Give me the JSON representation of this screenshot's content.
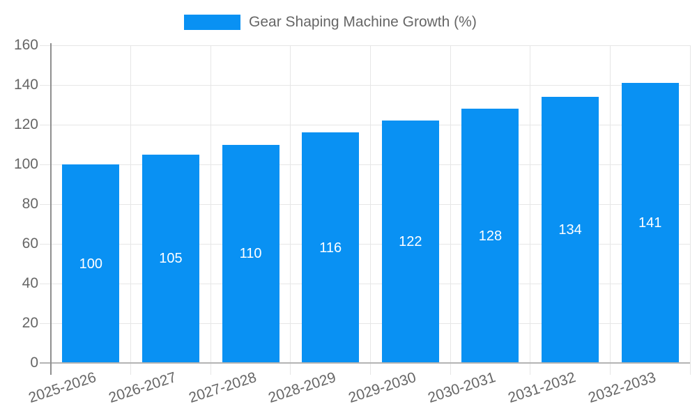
{
  "legend": {
    "label": "Gear Shaping Machine Growth (%)"
  },
  "colors": {
    "bar": "#0991f3",
    "bar_label": "#ffffff",
    "grid": "#e6e6e6",
    "y_axis_line": "#8f8f8f",
    "x_axis_line": "#b3b3b3",
    "text": "#666666"
  },
  "chart_data": {
    "type": "bar",
    "title": "",
    "categories": [
      "2025-2026",
      "2026-2027",
      "2027-2028",
      "2028-2029",
      "2029-2030",
      "2030-2031",
      "2031-2032",
      "2032-2033"
    ],
    "values": [
      100,
      105,
      110,
      116,
      122,
      128,
      134,
      141
    ],
    "series_name": "Gear Shaping Machine Growth (%)",
    "xlabel": "",
    "ylabel": "",
    "ylim": [
      0,
      160
    ],
    "y_tick_step": 20,
    "y_ticks": [
      0,
      20,
      40,
      60,
      80,
      100,
      120,
      140,
      160
    ],
    "grid": true,
    "legend_position": "top",
    "bar_value_labels": true,
    "x_label_rotation_deg": -18
  }
}
